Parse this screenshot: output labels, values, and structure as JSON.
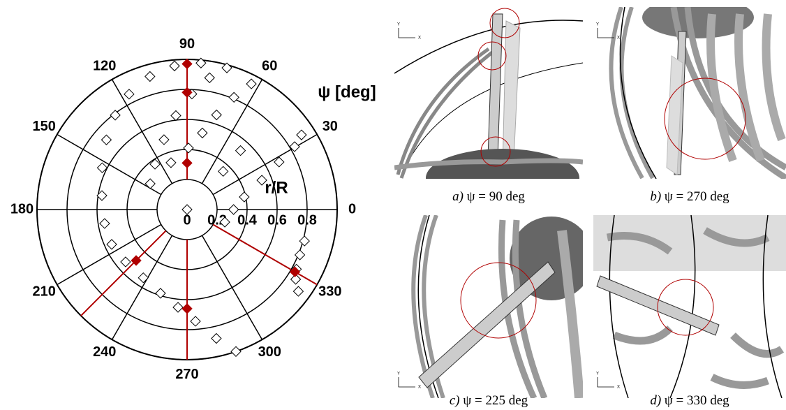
{
  "chart_data": {
    "type": "polar-scatter",
    "theta_label": "ψ [deg]",
    "r_label": "r/R",
    "rlim": [
      0,
      1
    ],
    "rticks": [
      0,
      0.2,
      0.4,
      0.6,
      0.8,
      1
    ],
    "rtick_labels": [
      0,
      0.2,
      0.4,
      0.6,
      0.8
    ],
    "thetaticks": [
      0,
      30,
      60,
      90,
      120,
      150,
      180,
      210,
      240,
      270,
      300,
      330
    ],
    "series": [
      {
        "color": "#000000",
        "marker": "open-diamond",
        "r": [
          0.98,
          0.96,
          0.92,
          0.86,
          0.79,
          0.71,
          0.63,
          0.575,
          0.557,
          0.553,
          0.538,
          0.54,
          0.585,
          0.654,
          0.746,
          0.88,
          1.0,
          0.3,
          0.37,
          0.49,
          0.63,
          0.77,
          0.89,
          0.98,
          0.33,
          0.41,
          0.52,
          0.66,
          0.81,
          0.94,
          0.265,
          0.31,
          0.39,
          0.535,
          0.69,
          0.83,
          0.91,
          0.53,
          0.35,
          0.81,
          0.81,
          0.83,
          0.86,
          0.92,
          0
        ],
        "theta": [
          84.6,
          95,
          105.6,
          116.7,
          127.3,
          139.2,
          153.8,
          170.7,
          189.6,
          204.8,
          220.4,
          237.3,
          252.4,
          264.7,
          274.3,
          282.8,
          289,
          145,
          125.3,
          108.3,
          96.8,
          87.6,
          80.3,
          74.3,
          109,
          88.7,
          78.7,
          72.7,
          67.3,
          62.9,
          341.6,
          0,
          12.4,
          21.4,
          27.3,
          30.3,
          33.1,
          47.8,
          46.6,
          345,
          338.1,
          331.4,
          327.3,
          323.7,
          0
        ]
      },
      {
        "color": "#b00000",
        "marker": "filled-diamond",
        "r": [
          0.97,
          0.78,
          0.31,
          0.48,
          0.66,
          0.83
        ],
        "theta": [
          90,
          90,
          90,
          225,
          270,
          330
        ]
      }
    ]
  },
  "triad": {
    "y": "Y",
    "x": "X"
  },
  "panels": [
    {
      "label": "a)",
      "caption": "ψ = 90 deg"
    },
    {
      "label": "b)",
      "caption": "ψ = 270 deg"
    },
    {
      "label": "c)",
      "caption": "ψ = 225 deg"
    },
    {
      "label": "d)",
      "caption": "ψ = 330 deg"
    }
  ]
}
